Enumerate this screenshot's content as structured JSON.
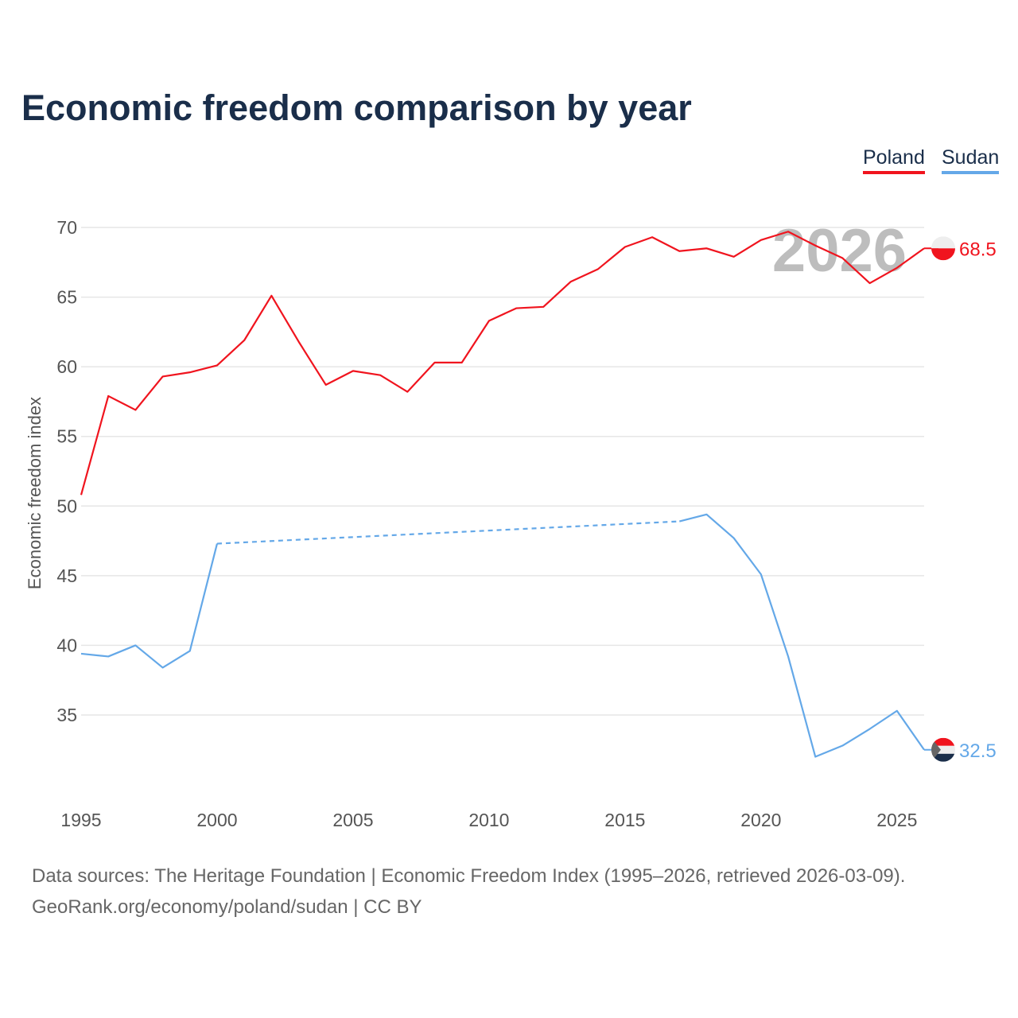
{
  "chart_data": {
    "type": "line",
    "title": "Economic freedom comparison by year",
    "xlabel": "",
    "ylabel": "Economic freedom index",
    "xlim": [
      1995,
      2026
    ],
    "ylim": [
      30,
      70
    ],
    "x_ticks": [
      1995,
      2000,
      2005,
      2010,
      2015,
      2020,
      2025
    ],
    "y_ticks": [
      35,
      40,
      45,
      50,
      55,
      60,
      65,
      70
    ],
    "grid": true,
    "legend_position": "top-right",
    "current_year_label": "2026",
    "x": [
      1995,
      1996,
      1997,
      1998,
      1999,
      2000,
      2001,
      2002,
      2003,
      2004,
      2005,
      2006,
      2007,
      2008,
      2009,
      2010,
      2011,
      2012,
      2013,
      2014,
      2015,
      2016,
      2017,
      2018,
      2019,
      2020,
      2021,
      2022,
      2023,
      2024,
      2025,
      2026
    ],
    "series": [
      {
        "name": "Poland",
        "color": "#f0141e",
        "end_label": "68.5",
        "values": [
          50.8,
          57.9,
          56.9,
          59.3,
          59.6,
          60.1,
          61.9,
          65.1,
          61.8,
          58.7,
          59.7,
          59.4,
          58.2,
          60.3,
          60.3,
          63.3,
          64.2,
          64.3,
          66.1,
          67.0,
          68.6,
          69.3,
          68.3,
          68.5,
          67.9,
          69.1,
          69.7,
          68.7,
          67.8,
          66.0,
          67.1,
          68.5
        ]
      },
      {
        "name": "Sudan",
        "color": "#64a8e8",
        "end_label": "32.5",
        "values": [
          39.4,
          39.2,
          40.0,
          38.4,
          39.6,
          47.3,
          null,
          null,
          null,
          null,
          null,
          null,
          null,
          null,
          null,
          null,
          null,
          null,
          null,
          null,
          null,
          null,
          48.9,
          49.4,
          47.7,
          45.1,
          39.2,
          32.0,
          32.8,
          34.0,
          35.3,
          32.5
        ]
      }
    ]
  },
  "legend": {
    "poland": "Poland",
    "sudan": "Sudan"
  },
  "footer": {
    "sources": "Data sources: The Heritage Foundation | Economic Freedom Index (1995–2026, retrieved 2026-03-09).",
    "credit": "GeoRank.org/economy/poland/sudan | CC BY"
  }
}
